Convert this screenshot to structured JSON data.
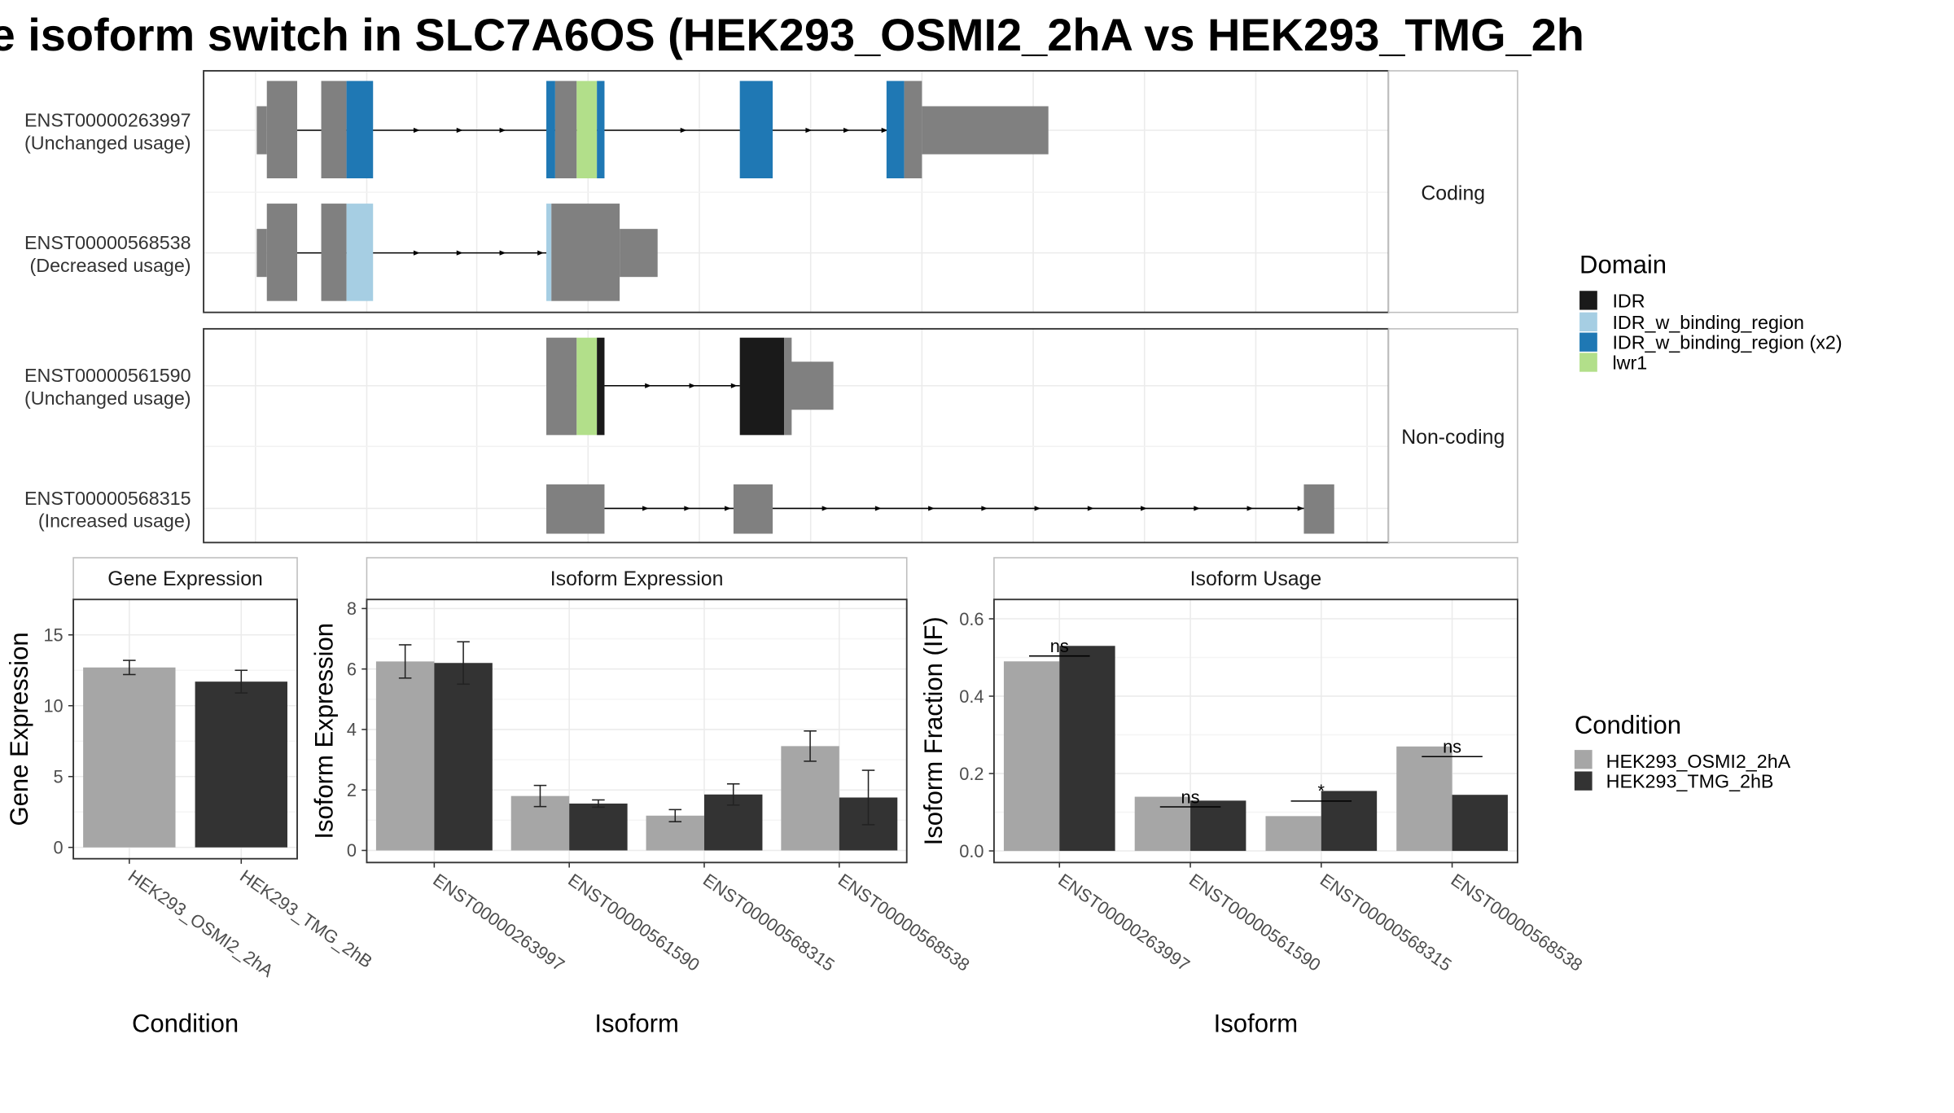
{
  "title": "e isoform switch in SLC7A6OS (HEK293_OSMI2_2hA vs HEK293_TMG_2h",
  "colors": {
    "exon": "#808080",
    "IDR": "#1a1a1a",
    "IDR_w_binding_region": "#a6cee3",
    "IDR_w_binding_region (x2)": "#1f78b4",
    "lwr1": "#b2df8a",
    "cond1": "#a6a6a6",
    "cond2": "#333333"
  },
  "structure": {
    "facets": [
      "Coding",
      "Non-coding"
    ],
    "transcripts": [
      {
        "id": "ENST00000263997",
        "usage": "(Unchanged usage)",
        "facet": "Coding"
      },
      {
        "id": "ENST00000568538",
        "usage": "(Decreased usage)",
        "facet": "Coding"
      },
      {
        "id": "ENST00000561590",
        "usage": "(Unchanged usage)",
        "facet": "Non-coding"
      },
      {
        "id": "ENST00000568315",
        "usage": "(Increased usage)",
        "facet": "Non-coding"
      }
    ],
    "domain_legend": {
      "title": "Domain",
      "items": [
        {
          "label": "IDR",
          "color": "#1a1a1a"
        },
        {
          "label": "IDR_w_binding_region",
          "color": "#a6cee3"
        },
        {
          "label": "IDR_w_binding_region (x2)",
          "color": "#1f78b4"
        },
        {
          "label": "lwr1",
          "color": "#b2df8a"
        }
      ]
    }
  },
  "condition_legend": {
    "title": "Condition",
    "items": [
      {
        "label": "HEK293_OSMI2_2hA",
        "color": "#a6a6a6"
      },
      {
        "label": "HEK293_TMG_2hB",
        "color": "#333333"
      }
    ]
  },
  "chart_data": [
    {
      "type": "bar",
      "strip": "Gene Expression",
      "xlabel": "Condition",
      "ylabel": "Gene Expression",
      "ylim": [
        -0.8,
        17.5
      ],
      "yticks": [
        0,
        5,
        10,
        15
      ],
      "categories": [
        "HEK293_OSMI2_2hA",
        "HEK293_TMG_2hB"
      ],
      "values": [
        12.7,
        11.7
      ],
      "errors": [
        0.5,
        0.8
      ]
    },
    {
      "type": "bar",
      "strip": "Isoform Expression",
      "xlabel": "Isoform",
      "ylabel": "Isoform Expression",
      "ylim": [
        -0.4,
        8.3
      ],
      "yticks": [
        0,
        2,
        4,
        6,
        8
      ],
      "categories": [
        "ENST00000263997",
        "ENST00000561590",
        "ENST00000568315",
        "ENST00000568538"
      ],
      "series": [
        {
          "name": "HEK293_OSMI2_2hA",
          "values": [
            6.25,
            1.8,
            1.15,
            3.45
          ],
          "errors": [
            0.55,
            0.35,
            0.2,
            0.5
          ]
        },
        {
          "name": "HEK293_TMG_2hB",
          "values": [
            6.2,
            1.55,
            1.85,
            1.75
          ],
          "errors": [
            0.7,
            0.12,
            0.35,
            0.9
          ]
        }
      ]
    },
    {
      "type": "bar",
      "strip": "Isoform Usage",
      "xlabel": "Isoform",
      "ylabel": "Isoform Fraction (IF)",
      "ylim": [
        -0.03,
        0.65
      ],
      "yticks": [
        0.0,
        0.2,
        0.4,
        0.6
      ],
      "ytick_labels": [
        "0.0",
        "0.2",
        "0.4",
        "0.6"
      ],
      "categories": [
        "ENST00000263997",
        "ENST00000561590",
        "ENST00000568315",
        "ENST00000568538"
      ],
      "series": [
        {
          "name": "HEK293_OSMI2_2hA",
          "values": [
            0.49,
            0.14,
            0.09,
            0.27
          ]
        },
        {
          "name": "HEK293_TMG_2hB",
          "values": [
            0.53,
            0.13,
            0.155,
            0.145
          ]
        }
      ],
      "significance": [
        "ns",
        "ns",
        "*",
        "ns"
      ]
    }
  ]
}
